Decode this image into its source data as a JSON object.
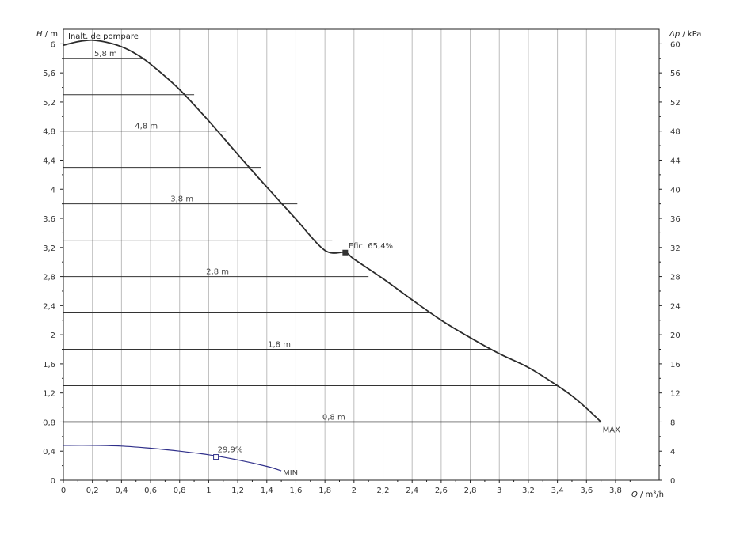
{
  "chart_data": {
    "type": "line",
    "title": "Inalt. de pompare",
    "xlabel": {
      "var": "Q",
      "unit": " / m³/h"
    },
    "ylabel": {
      "var": "H",
      "unit": " / m"
    },
    "y2label": {
      "var": "Δp",
      "unit": " / kPa"
    },
    "xlim": [
      0,
      4.1
    ],
    "ylim": [
      0,
      6.2
    ],
    "y2lim": [
      0,
      62
    ],
    "x_ticks": [
      0,
      0.2,
      0.4,
      0.6,
      0.8,
      1,
      1.2,
      1.4,
      1.6,
      1.8,
      2,
      2.2,
      2.4,
      2.6,
      2.8,
      3,
      3.2,
      3.4,
      3.6,
      3.8
    ],
    "x_tick_labels": [
      "0",
      "0,2",
      "0,4",
      "0,6",
      "0,8",
      "1",
      "1,2",
      "1,4",
      "1,6",
      "1,8",
      "2",
      "2,2",
      "2,4",
      "2,6",
      "2,8",
      "3",
      "3,2",
      "3,4",
      "3,6",
      "3,8"
    ],
    "y_ticks": [
      0,
      0.4,
      0.8,
      1.2,
      1.6,
      2,
      2.4,
      2.8,
      3.2,
      3.6,
      4,
      4.4,
      4.8,
      5.2,
      5.6,
      6
    ],
    "y_tick_labels": [
      "0",
      "0,4",
      "0,8",
      "1,2",
      "1,6",
      "2",
      "2,4",
      "2,8",
      "3,2",
      "3,6",
      "4",
      "4,4",
      "4,8",
      "5,2",
      "5,6",
      "6"
    ],
    "y2_ticks": [
      0,
      4,
      8,
      12,
      16,
      20,
      24,
      28,
      32,
      36,
      40,
      44,
      48,
      52,
      56,
      60
    ],
    "grid": true,
    "series": [
      {
        "id": "max",
        "color": "#2b2b2b",
        "x": [
          0,
          0.1,
          0.2,
          0.3,
          0.4,
          0.5,
          0.6,
          0.8,
          1.0,
          1.2,
          1.4,
          1.6,
          1.8,
          1.94,
          2.0,
          2.2,
          2.4,
          2.6,
          2.8,
          3.0,
          3.2,
          3.4,
          3.5,
          3.6,
          3.7
        ],
        "y": [
          5.98,
          6.03,
          6.05,
          6.02,
          5.96,
          5.86,
          5.72,
          5.37,
          4.94,
          4.48,
          4.03,
          3.59,
          3.16,
          3.13,
          3.04,
          2.77,
          2.48,
          2.2,
          1.96,
          1.74,
          1.55,
          1.3,
          1.16,
          0.99,
          0.8
        ]
      },
      {
        "id": "min",
        "color": "#2f2f8a",
        "x": [
          0,
          0.2,
          0.4,
          0.6,
          0.8,
          1.0,
          1.2,
          1.4,
          1.5
        ],
        "y": [
          0.48,
          0.48,
          0.47,
          0.44,
          0.4,
          0.35,
          0.28,
          0.19,
          0.13
        ]
      }
    ],
    "levels": [
      {
        "y": 5.8,
        "label": "5,8 m",
        "x_end": 0.56
      },
      {
        "y": 5.3,
        "label": "",
        "x_end": 0.9
      },
      {
        "y": 4.8,
        "label": "4,8 m",
        "x_end": 1.12
      },
      {
        "y": 4.3,
        "label": "",
        "x_end": 1.36
      },
      {
        "y": 3.8,
        "label": "3,8 m",
        "x_end": 1.61
      },
      {
        "y": 3.3,
        "label": "",
        "x_end": 1.85
      },
      {
        "y": 2.8,
        "label": "2,8 m",
        "x_end": 2.1
      },
      {
        "y": 2.3,
        "label": "",
        "x_end": 2.52
      },
      {
        "y": 1.8,
        "label": "1,8 m",
        "x_end": 2.95
      },
      {
        "y": 1.3,
        "label": "",
        "x_end": 3.4
      },
      {
        "y": 0.8,
        "label": "0,8 m",
        "x_end": 3.7
      }
    ],
    "annotations": [
      {
        "id": "efic",
        "text": "Efic.  65,4%",
        "x": 1.94,
        "y": 3.13,
        "marker": "square-filled",
        "color": "#333333"
      },
      {
        "id": "eff-min",
        "text": "29,9%",
        "x": 1.05,
        "y": 0.32,
        "marker": "square-open",
        "color": "#2f2f8a"
      },
      {
        "id": "max-label",
        "text": "MAX",
        "x": 3.7,
        "y": 0.8,
        "color": "#555555"
      },
      {
        "id": "min-label",
        "text": "MIN",
        "x": 1.5,
        "y": 0.13,
        "color": "#888888"
      }
    ]
  }
}
